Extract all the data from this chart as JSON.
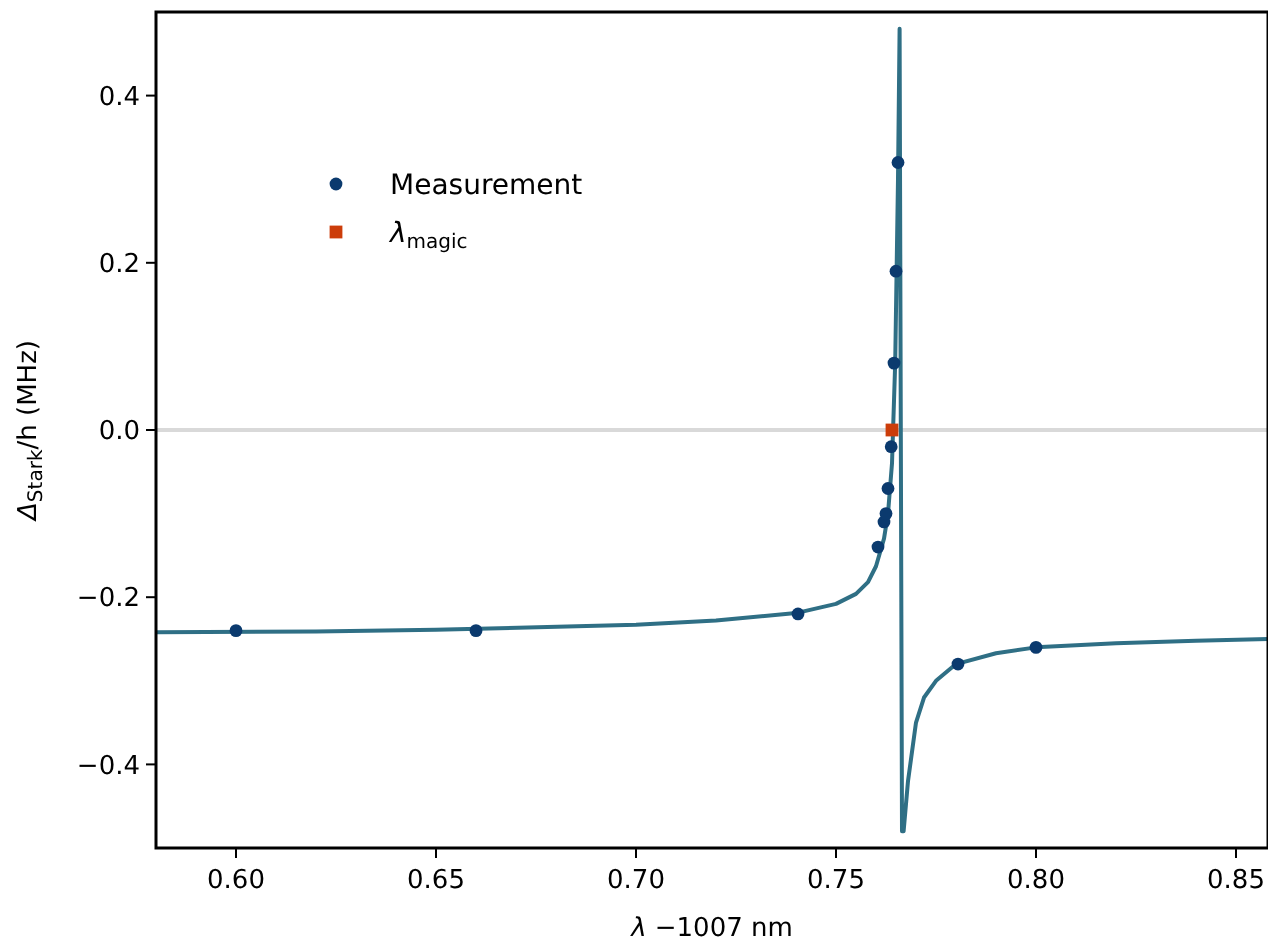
{
  "chart_data": {
    "type": "scatter",
    "xlabel": "λ −1007 nm",
    "ylabel": "Δ$_{Stark}$/h (MHz)",
    "xlim": [
      0.58,
      0.858
    ],
    "ylim": [
      -0.5,
      0.5
    ],
    "xticks": [
      {
        "value": 0.6,
        "label": "0.60"
      },
      {
        "value": 0.65,
        "label": "0.65"
      },
      {
        "value": 0.7,
        "label": "0.70"
      },
      {
        "value": 0.75,
        "label": "0.75"
      },
      {
        "value": 0.8,
        "label": "0.80"
      },
      {
        "value": 0.85,
        "label": "0.85"
      }
    ],
    "yticks": [
      {
        "value": -0.4,
        "label": "−0.4"
      },
      {
        "value": -0.2,
        "label": "−0.2"
      },
      {
        "value": 0,
        "label": "0.0"
      },
      {
        "value": 0.2,
        "label": "0.2"
      },
      {
        "value": 0.4,
        "label": "0.4"
      }
    ],
    "grid": false,
    "legend": "top left",
    "ref_lines": [
      {
        "axis": "y",
        "value": 0,
        "color": "#d9d9d9"
      }
    ],
    "series": [
      {
        "type": "line",
        "color": "#2f6f85",
        "marker": "none",
        "x": [
          0.58,
          0.62,
          0.65,
          0.7,
          0.72,
          0.74,
          0.75,
          0.755,
          0.758,
          0.76,
          0.762,
          0.763,
          0.764,
          0.7648,
          0.7655,
          0.7659,
          0.7665,
          0.7669,
          0.768,
          0.77,
          0.772,
          0.775,
          0.78,
          0.79,
          0.8,
          0.82,
          0.84,
          0.858
        ],
        "values": [
          -0.242,
          -0.241,
          -0.239,
          -0.233,
          -0.228,
          -0.219,
          -0.208,
          -0.196,
          -0.182,
          -0.163,
          -0.13,
          -0.1,
          -0.04,
          0.08,
          0.3,
          0.48,
          -0.48,
          -0.48,
          -0.42,
          -0.35,
          -0.32,
          -0.3,
          -0.28,
          -0.267,
          -0.26,
          -0.255,
          -0.252,
          -0.25
        ]
      },
      {
        "name": "Measurement",
        "color": "#0b3a6e",
        "marker": "circle",
        "x": [
          0.6,
          0.66,
          0.7405,
          0.7605,
          0.762,
          0.7625,
          0.763,
          0.7638,
          0.7645,
          0.765,
          0.7655,
          0.7805,
          0.8
        ],
        "values": [
          -0.24,
          -0.24,
          -0.22,
          -0.14,
          -0.11,
          -0.1,
          -0.07,
          -0.02,
          0.08,
          0.19,
          0.32,
          -0.28,
          -0.26
        ]
      },
      {
        "name": "λ$_{magic}$",
        "color": "#cc3d0a",
        "marker": "square",
        "x": [
          0.764
        ],
        "values": [
          0
        ]
      }
    ]
  }
}
